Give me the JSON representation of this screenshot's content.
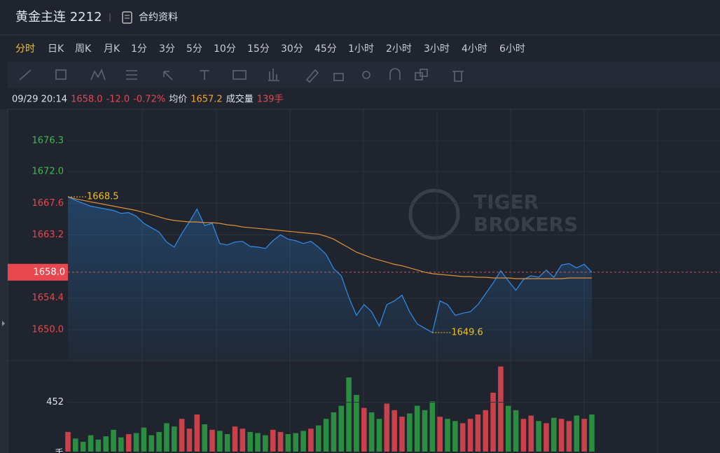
{
  "header": {
    "title": "黄金主连 2212",
    "link": "合约资料"
  },
  "timeframes": [
    "分时",
    "日K",
    "周K",
    "月K",
    "1分",
    "3分",
    "5分",
    "10分",
    "15分",
    "30分",
    "45分",
    "1小时",
    "2小时",
    "3小时",
    "4小时",
    "6小时"
  ],
  "info": {
    "datetime": "09/29 20:14",
    "change": "-12.0",
    "change_pct": "-0.72%",
    "avg_label": "均价",
    "avg": "1657.2",
    "volume_label": "成交量",
    "volume": "139手"
  },
  "watermark": [
    "TIGER",
    "BROKERS"
  ],
  "chart_data": [
    {
      "type": "line",
      "current_price": {
        "value": 1658.0,
        "label": "1658.0"
      },
      "series": [
        {
          "color": "#2f8ff0",
          "values": [
            1668.5,
            1668.0,
            1667.6,
            1667.2,
            1667.0,
            1666.8,
            1666.6,
            1666.2,
            1666.3,
            1665.8,
            1664.8,
            1664.2,
            1663.6,
            1662.2,
            1661.5,
            1663.4,
            1665.0,
            1666.8,
            1664.5,
            1664.8,
            1662.0,
            1661.8,
            1662.2,
            1662.3,
            1661.6,
            1661.5,
            1661.3,
            1662.4,
            1663.2,
            1662.6,
            1662.4,
            1662.0,
            1662.3,
            1661.5,
            1660.5,
            1658.5,
            1657.5,
            1654.5,
            1652.0,
            1653.5,
            1652.5,
            1650.5,
            1653.5,
            1654.0,
            1654.8,
            1652.5,
            1650.8,
            1650.2,
            1649.6,
            1654.0,
            1653.5,
            1652.0,
            1652.3,
            1652.5,
            1653.5,
            1655.0,
            1656.5,
            1658.2,
            1656.8,
            1655.5,
            1657.0,
            1657.5,
            1657.3,
            1658.3,
            1657.3,
            1659.0,
            1659.2,
            1658.6,
            1659.1,
            1658.0
          ]
        },
        {
          "color": "#e0913a",
          "values": [
            1668.5,
            1668.2,
            1668.0,
            1667.8,
            1667.6,
            1667.4,
            1667.2,
            1667.0,
            1666.8,
            1666.6,
            1666.3,
            1666.0,
            1665.7,
            1665.4,
            1665.2,
            1665.1,
            1665.0,
            1665.0,
            1664.9,
            1664.9,
            1664.8,
            1664.6,
            1664.5,
            1664.3,
            1664.2,
            1664.1,
            1664.0,
            1663.9,
            1663.8,
            1663.7,
            1663.6,
            1663.5,
            1663.4,
            1663.3,
            1663.0,
            1662.6,
            1662.0,
            1661.4,
            1660.8,
            1660.4,
            1660.0,
            1659.7,
            1659.4,
            1659.1,
            1658.9,
            1658.6,
            1658.3,
            1658.0,
            1657.8,
            1657.7,
            1657.6,
            1657.5,
            1657.4,
            1657.4,
            1657.3,
            1657.3,
            1657.2,
            1657.2,
            1657.2,
            1657.1,
            1657.1,
            1657.1,
            1657.1,
            1657.1,
            1657.1,
            1657.1,
            1657.2,
            1657.2,
            1657.2,
            1657.2
          ]
        }
      ],
      "annotations": [
        1668.5,
        1649.6
      ],
      "ylim": [
        1645.7,
        1680.3
      ],
      "yticks": [
        1676.3,
        {
          "value": 1672.0,
          "label": "1672.0"
        },
        1667.6,
        1663.2,
        1654.4,
        {
          "value": 1650.0,
          "label": "1650.0"
        }
      ],
      "grid": true
    },
    {
      "type": "bar",
      "ylabel": "手",
      "colors": [
        "#e8474f",
        "#2ea043"
      ],
      "values": [
        180,
        120,
        90,
        150,
        110,
        140,
        200,
        130,
        160,
        170,
        220,
        150,
        180,
        260,
        230,
        300,
        210,
        340,
        250,
        200,
        190,
        160,
        230,
        210,
        180,
        170,
        150,
        200,
        180,
        160,
        170,
        190,
        210,
        240,
        300,
        360,
        420,
        680,
        520,
        400,
        360,
        300,
        440,
        380,
        320,
        350,
        420,
        380,
        460,
        320,
        300,
        280,
        260,
        300,
        340,
        380,
        540,
        780,
        420,
        380,
        300,
        330,
        280,
        260,
        310,
        300,
        280,
        330,
        300,
        340
      ],
      "ylim": [
        0,
        834
      ],
      "yticks": [
        452
      ]
    }
  ]
}
